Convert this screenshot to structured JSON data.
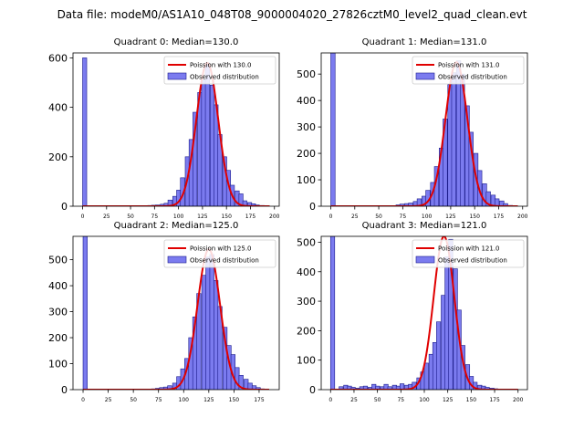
{
  "figure_title": "Data file: modeM0/AS1A10_048T08_9000004020_27826cztM0_level2_quad_clean.evt",
  "colors": {
    "bar_fill": "#7b7bef",
    "bar_edge": "#1c1c8c",
    "fit_line": "#e00000"
  },
  "chart_data": [
    {
      "type": "bar",
      "title": "Quadrant 0: Median=130.0",
      "legend": [
        "Poission with 130.0",
        "Observed distribution"
      ],
      "legend_position": "top-right",
      "xlim": [
        -10,
        205
      ],
      "ylim": [
        0,
        620
      ],
      "xticks": [
        0,
        25,
        50,
        75,
        100,
        125,
        150,
        175,
        200
      ],
      "yticks": [
        0,
        200,
        400,
        600
      ],
      "bin_width": 4.3,
      "bar_x": [
        0,
        68,
        72,
        76,
        81,
        85,
        89,
        94,
        98,
        102,
        107,
        111,
        115,
        120,
        124,
        128,
        133,
        137,
        141,
        146,
        150,
        154,
        159,
        163,
        167,
        172,
        176,
        180,
        185
      ],
      "bar_y": [
        600,
        3,
        4,
        5,
        8,
        12,
        25,
        40,
        65,
        115,
        200,
        270,
        380,
        460,
        510,
        580,
        490,
        410,
        290,
        200,
        145,
        85,
        62,
        50,
        22,
        15,
        10,
        5,
        3
      ],
      "fit_mean": 130,
      "fit_peak": 580,
      "fit_range": [
        0,
        195
      ]
    },
    {
      "type": "bar",
      "title": "Quadrant 1: Median=131.0",
      "legend": [
        "Poission with 131.0",
        "Observed distribution"
      ],
      "legend_position": "top-right",
      "xlim": [
        -10,
        205
      ],
      "ylim": [
        0,
        580
      ],
      "xticks": [
        0,
        25,
        50,
        75,
        100,
        125,
        150,
        175,
        200
      ],
      "yticks": [
        0,
        100,
        200,
        300,
        400,
        500
      ],
      "bin_width": 4.5,
      "bar_x": [
        0,
        68,
        72,
        77,
        81,
        86,
        90,
        95,
        99,
        104,
        108,
        113,
        117,
        122,
        126,
        131,
        135,
        140,
        144,
        149,
        153,
        158,
        162,
        167,
        171,
        176,
        180,
        185
      ],
      "bar_y": [
        580,
        5,
        8,
        10,
        12,
        18,
        28,
        38,
        60,
        90,
        150,
        220,
        330,
        460,
        505,
        550,
        500,
        380,
        280,
        200,
        135,
        85,
        55,
        42,
        28,
        20,
        10,
        3
      ],
      "fit_mean": 131,
      "fit_peak": 545,
      "fit_range": [
        0,
        195
      ]
    },
    {
      "type": "bar",
      "title": "Quadrant 2: Median=125.0",
      "legend": [
        "Poission with 125.0",
        "Observed distribution"
      ],
      "legend_position": "top-right",
      "xlim": [
        -10,
        195
      ],
      "ylim": [
        0,
        590
      ],
      "xticks": [
        0,
        25,
        50,
        75,
        100,
        125,
        150,
        175
      ],
      "yticks": [
        0,
        100,
        200,
        300,
        400,
        500
      ],
      "bin_width": 4.2,
      "bar_x": [
        0,
        68,
        72,
        76,
        80,
        84,
        89,
        93,
        97,
        101,
        105,
        109,
        113,
        118,
        122,
        126,
        130,
        134,
        139,
        143,
        147,
        151,
        155,
        160,
        164,
        168,
        172,
        176
      ],
      "bar_y": [
        590,
        3,
        5,
        8,
        10,
        15,
        25,
        50,
        80,
        120,
        200,
        280,
        370,
        440,
        510,
        520,
        420,
        320,
        240,
        170,
        135,
        85,
        55,
        40,
        25,
        15,
        8,
        3
      ],
      "fit_mean": 125,
      "fit_peak": 540,
      "fit_range": [
        0,
        185
      ]
    },
    {
      "type": "bar",
      "title": "Quadrant 3: Median=121.0",
      "legend": [
        "Poission with 121.0",
        "Observed distribution"
      ],
      "legend_position": "top-right",
      "xlim": [
        -10,
        210
      ],
      "ylim": [
        0,
        520
      ],
      "xticks": [
        0,
        25,
        50,
        75,
        100,
        125,
        150,
        175,
        200
      ],
      "yticks": [
        0,
        100,
        200,
        300,
        400,
        500
      ],
      "bin_width": 4.4,
      "bar_x": [
        0,
        9,
        14,
        18,
        22,
        27,
        31,
        35,
        40,
        44,
        48,
        53,
        57,
        61,
        66,
        70,
        74,
        79,
        83,
        87,
        92,
        96,
        100,
        105,
        109,
        113,
        118,
        122,
        126,
        131,
        135,
        139,
        144,
        148,
        152,
        157,
        161,
        165,
        170,
        174
      ],
      "bar_y": [
        520,
        10,
        15,
        12,
        8,
        5,
        10,
        12,
        8,
        18,
        12,
        10,
        18,
        10,
        15,
        12,
        20,
        15,
        18,
        25,
        40,
        60,
        90,
        120,
        160,
        230,
        320,
        450,
        510,
        410,
        270,
        150,
        85,
        45,
        25,
        15,
        12,
        8,
        5,
        3
      ],
      "fit_mean": 121,
      "fit_peak": 520,
      "fit_range": [
        0,
        200
      ]
    }
  ]
}
